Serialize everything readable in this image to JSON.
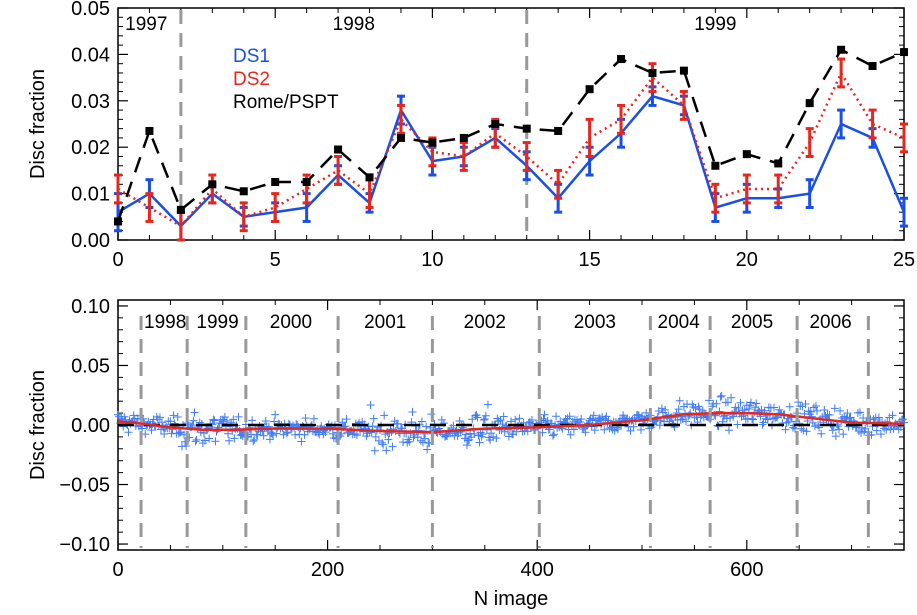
{
  "chart_data": [
    {
      "type": "line",
      "ylabel": "Disc fraction",
      "xlabel": "",
      "xlim": [
        0,
        25
      ],
      "ylim": [
        0,
        0.05
      ],
      "x_ticks": [
        "0",
        "5",
        "10",
        "15",
        "20",
        "25"
      ],
      "y_ticks": [
        "0.00",
        "0.01",
        "0.02",
        "0.03",
        "0.04",
        "0.05"
      ],
      "year_labels": [
        {
          "label": "1997",
          "x": 0.9
        },
        {
          "label": "1998",
          "x": 7.5
        },
        {
          "label": "1999",
          "x": 19.0
        }
      ],
      "year_boundaries": [
        2,
        13
      ],
      "legend": {
        "position": "top-left",
        "entries": [
          "DS1",
          "DS2",
          "Rome/PSPT"
        ]
      },
      "series": [
        {
          "name": "DS1",
          "color": "#1a4fe6",
          "style": "solid",
          "x": [
            0,
            1,
            2,
            3,
            4,
            5,
            6,
            7,
            8,
            9,
            10,
            11,
            12,
            13,
            14,
            15,
            16,
            17,
            18,
            19,
            20,
            21,
            22,
            23,
            24,
            25
          ],
          "values": [
            0.006,
            0.01,
            0.003,
            0.01,
            0.005,
            0.006,
            0.007,
            0.014,
            0.008,
            0.028,
            0.017,
            0.018,
            0.022,
            0.016,
            0.009,
            0.017,
            0.023,
            0.031,
            0.029,
            0.007,
            0.009,
            0.009,
            0.01,
            0.025,
            0.022,
            0.006
          ],
          "err": [
            0.004,
            0.003,
            0.003,
            0.002,
            0.002,
            0.002,
            0.003,
            0.002,
            0.002,
            0.003,
            0.003,
            0.002,
            0.002,
            0.003,
            0.003,
            0.003,
            0.003,
            0.002,
            0.002,
            0.003,
            0.003,
            0.002,
            0.003,
            0.003,
            0.002,
            0.003
          ]
        },
        {
          "name": "DS2",
          "color": "#e8261c",
          "style": "dotted",
          "x": [
            0,
            1,
            2,
            3,
            4,
            5,
            6,
            7,
            8,
            9,
            10,
            11,
            12,
            13,
            14,
            15,
            16,
            17,
            18,
            19,
            20,
            21,
            22,
            23,
            24,
            25
          ],
          "values": [
            0.011,
            0.007,
            0.003,
            0.011,
            0.005,
            0.007,
            0.011,
            0.015,
            0.01,
            0.026,
            0.019,
            0.018,
            0.023,
            0.018,
            0.012,
            0.022,
            0.026,
            0.035,
            0.029,
            0.009,
            0.011,
            0.011,
            0.021,
            0.036,
            0.025,
            0.022
          ],
          "err": [
            0.003,
            0.003,
            0.003,
            0.003,
            0.003,
            0.003,
            0.003,
            0.003,
            0.003,
            0.003,
            0.003,
            0.003,
            0.003,
            0.003,
            0.003,
            0.004,
            0.003,
            0.003,
            0.003,
            0.003,
            0.003,
            0.003,
            0.003,
            0.003,
            0.003,
            0.003
          ]
        },
        {
          "name": "Rome/PSPT",
          "color": "#000000",
          "style": "dashed",
          "x": [
            0,
            1,
            2,
            3,
            4,
            5,
            6,
            7,
            8,
            9,
            10,
            11,
            12,
            13,
            14,
            15,
            16,
            17,
            18,
            19,
            20,
            21,
            22,
            23,
            24,
            25
          ],
          "values": [
            0.004,
            0.0235,
            0.0065,
            0.012,
            0.0105,
            0.0125,
            0.0125,
            0.0195,
            0.0135,
            0.022,
            0.021,
            0.022,
            0.025,
            0.024,
            0.0235,
            0.0325,
            0.039,
            0.036,
            0.0365,
            0.016,
            0.0185,
            0.0165,
            0.0295,
            0.041,
            0.0375,
            0.0405
          ]
        }
      ]
    },
    {
      "type": "scatter",
      "xlabel": "N image",
      "ylabel": "Disc fraction",
      "xlim": [
        0,
        750
      ],
      "ylim": [
        -0.105,
        0.105
      ],
      "x_ticks": [
        "0",
        "200",
        "400",
        "600"
      ],
      "y_ticks": [
        "−0.10",
        "−0.05",
        "0.00",
        "0.05",
        "0.10"
      ],
      "year_labels": [
        {
          "label": "1998",
          "x": 45
        },
        {
          "label": "1999",
          "x": 95
        },
        {
          "label": "2000",
          "x": 165
        },
        {
          "label": "2001",
          "x": 255
        },
        {
          "label": "2002",
          "x": 350
        },
        {
          "label": "2003",
          "x": 455
        },
        {
          "label": "2004",
          "x": 535
        },
        {
          "label": "2005",
          "x": 605
        },
        {
          "label": "2006",
          "x": 680
        }
      ],
      "year_boundaries": [
        22,
        66,
        122,
        210,
        300,
        402,
        508,
        565,
        648,
        716
      ],
      "smooth_curve": {
        "color": "#e8261c",
        "x": [
          0,
          25,
          50,
          80,
          110,
          150,
          200,
          250,
          300,
          350,
          400,
          450,
          500,
          540,
          570,
          600,
          630,
          660,
          700,
          750
        ],
        "values": [
          0.003,
          0.001,
          -0.002,
          -0.004,
          -0.004,
          -0.003,
          -0.003,
          -0.005,
          -0.006,
          -0.003,
          -0.002,
          0.0,
          0.004,
          0.009,
          0.01,
          0.01,
          0.009,
          0.006,
          0.002,
          0.001
        ]
      },
      "zero_line": {
        "color": "#000000",
        "style": "dashed",
        "value": 0.0
      },
      "scatter_color": "#3f7cf5"
    }
  ]
}
